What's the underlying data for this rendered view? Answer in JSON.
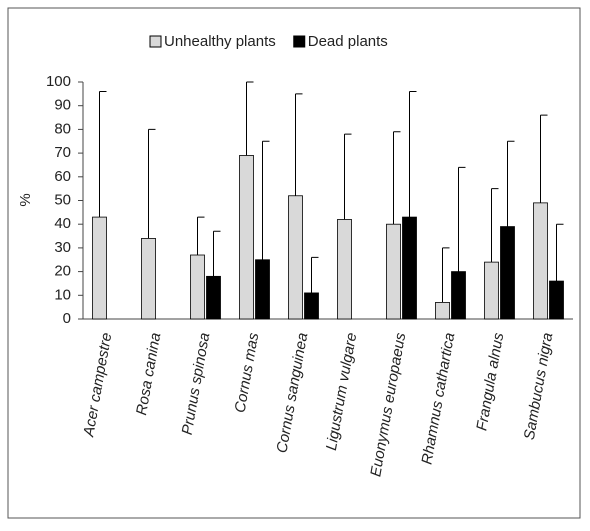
{
  "chart_data": {
    "type": "bar",
    "ylabel": "%",
    "categories": [
      "Acer campestre",
      "Rosa canina",
      "Prunus spinosa",
      "Cornus mas",
      "Cornus sanguinea",
      "Ligustrum vulgare",
      "Euonymus europaeus",
      "Rhamnus cathartica",
      "Frangula alnus",
      "Sambucus nigra"
    ],
    "series": [
      {
        "name": "Unhealthy plants",
        "color": "#d9d9d9",
        "values": [
          43,
          34,
          27,
          69,
          52,
          42,
          40,
          7,
          24,
          49
        ],
        "errors": [
          53,
          46,
          16,
          31,
          43,
          36,
          39,
          23,
          31,
          37
        ]
      },
      {
        "name": "Dead plants",
        "color": "#000000",
        "values": [
          0,
          0,
          18,
          25,
          11,
          0,
          43,
          20,
          39,
          16
        ],
        "errors": [
          null,
          null,
          19,
          50,
          15,
          null,
          53,
          44,
          36,
          24
        ]
      }
    ],
    "ylim": [
      0,
      100
    ],
    "yticks": [
      0,
      10,
      20,
      30,
      40,
      50,
      60,
      70,
      80,
      90,
      100
    ],
    "legend": "top"
  }
}
